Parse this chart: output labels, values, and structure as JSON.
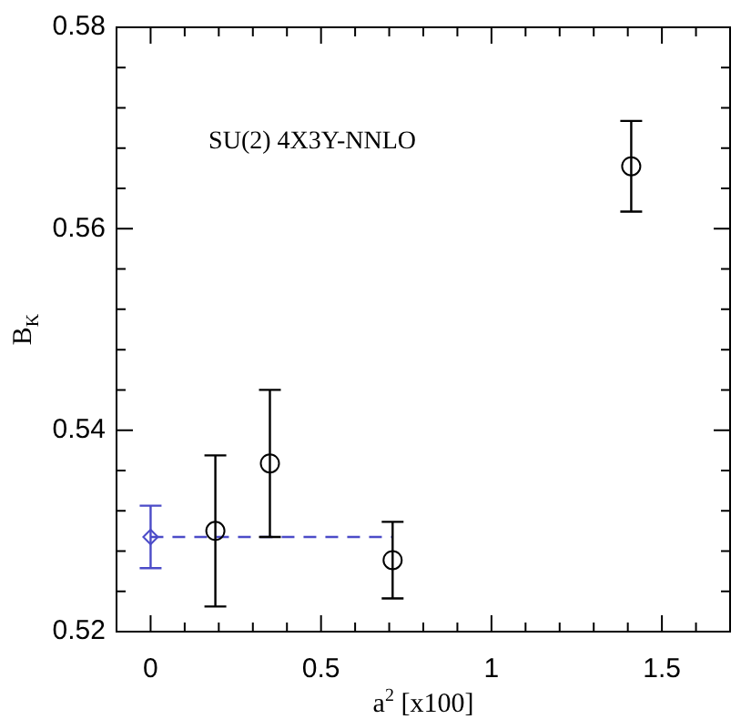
{
  "chart_data": {
    "type": "scatter",
    "xlabel": "a$^{2}$ [x100]",
    "ylabel": "B$_{K}$",
    "annotations": [
      "SU(2) 4X3Y-NNLO"
    ],
    "xlim": [
      -0.1,
      1.7
    ],
    "ylim": [
      0.52,
      0.58
    ],
    "xticks": [
      0,
      {
        "value": 0.1,
        "label": null
      },
      {
        "value": 0.2,
        "label": null
      },
      {
        "value": 0.3,
        "label": null
      },
      {
        "value": 0.4,
        "label": null
      },
      0.5,
      {
        "value": 0.6,
        "label": null
      },
      {
        "value": 0.7,
        "label": null
      },
      {
        "value": 0.8,
        "label": null
      },
      {
        "value": 0.9,
        "label": null
      },
      1,
      {
        "value": 1.1,
        "label": null
      },
      {
        "value": 1.2,
        "label": null
      },
      {
        "value": 1.3,
        "label": null
      },
      {
        "value": 1.4,
        "label": null
      },
      1.5,
      {
        "value": 1.6,
        "label": null
      }
    ],
    "yticks": [
      0.52,
      {
        "value": 0.524,
        "label": null
      },
      {
        "value": 0.528,
        "label": null
      },
      {
        "value": 0.532,
        "label": null
      },
      {
        "value": 0.536,
        "label": null
      },
      0.54,
      {
        "value": 0.544,
        "label": null
      },
      {
        "value": 0.548,
        "label": null
      },
      {
        "value": 0.552,
        "label": null
      },
      {
        "value": 0.556,
        "label": null
      },
      0.56,
      {
        "value": 0.564,
        "label": null
      },
      {
        "value": 0.568,
        "label": null
      },
      {
        "value": 0.572,
        "label": null
      },
      {
        "value": 0.576,
        "label": null
      },
      0.58
    ],
    "series": [
      {
        "type": "scatter",
        "color": "#000000",
        "marker": "circle",
        "x": [
          0.19,
          0.35,
          0.71,
          1.41
        ],
        "values": [
          0.53,
          0.5367,
          0.5271,
          0.5662
        ],
        "errors": [
          0.0075,
          0.0073,
          0.0038,
          0.0045
        ]
      },
      {
        "type": "scatter",
        "color": "#4b4bc8",
        "marker": "diamond",
        "x": [
          0
        ],
        "values": [
          0.5294
        ],
        "errors": [
          0.0031
        ]
      },
      {
        "type": "line",
        "color": "#4b4bc8",
        "marker": "none",
        "line_style": "dashed",
        "x": [
          0,
          0.71
        ],
        "values": [
          0.5294,
          0.5294
        ]
      }
    ]
  }
}
